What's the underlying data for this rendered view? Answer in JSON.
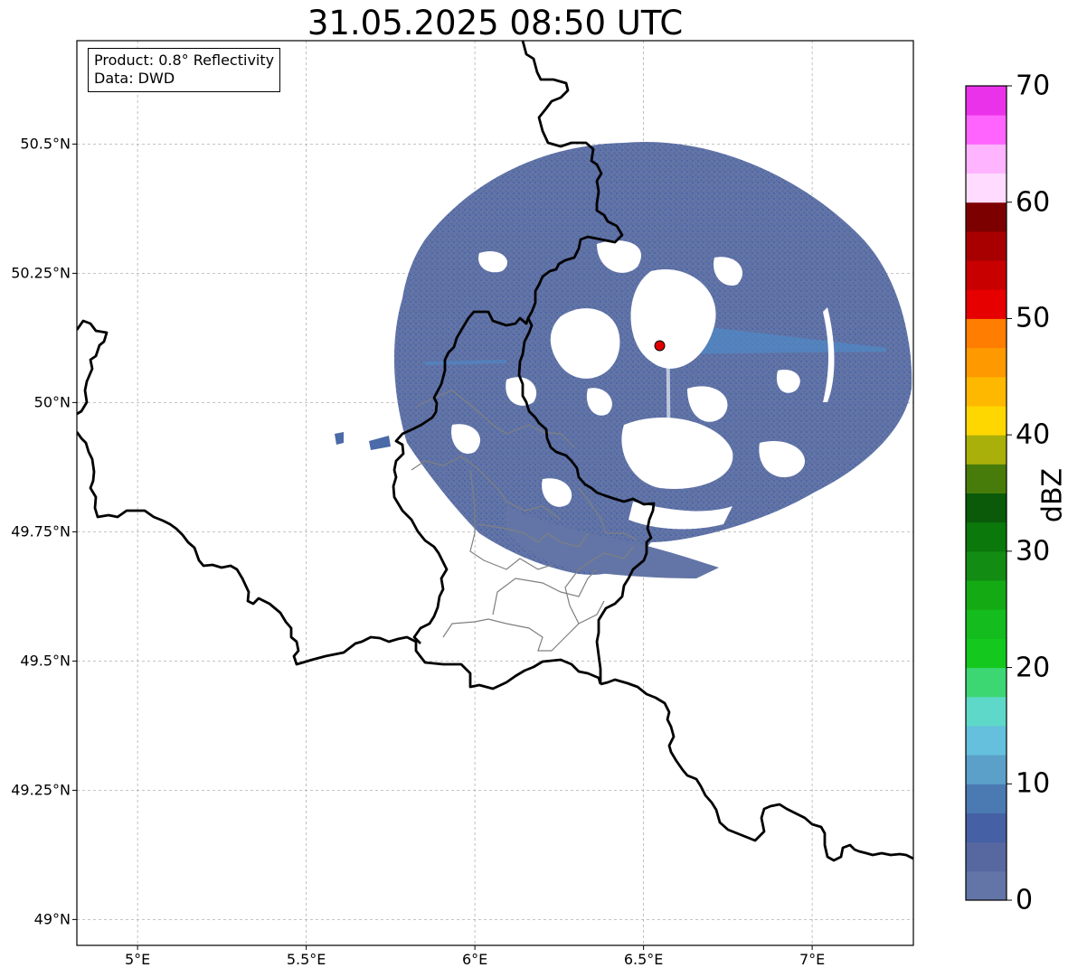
{
  "title": "31.05.2025 08:50 UTC",
  "info_box": {
    "product": "Product: 0.8° Reflectivity",
    "data": "Data: DWD"
  },
  "axes": {
    "lat_labels": [
      "50.5°N",
      "50.25°N",
      "50°N",
      "49.75°N",
      "49.5°N",
      "49.25°N",
      "49°N"
    ],
    "lon_labels": [
      "5°E",
      "5.5°E",
      "6°E",
      "6.5°E",
      "7°E"
    ],
    "lat_values": [
      50.5,
      50.25,
      50.0,
      49.75,
      49.5,
      49.25,
      49.0
    ],
    "lon_values": [
      5.0,
      5.5,
      6.0,
      6.5,
      7.0
    ],
    "extent": {
      "lon_min": 4.82,
      "lon_max": 7.3,
      "lat_min": 48.95,
      "lat_max": 50.7
    }
  },
  "radar_site": {
    "lon": 6.548,
    "lat": 50.11,
    "color": "#e00000"
  },
  "colorbar": {
    "label": "dBZ",
    "ticks": [
      "0",
      "10",
      "20",
      "30",
      "40",
      "50",
      "60",
      "70"
    ],
    "tick_values": [
      0,
      10,
      20,
      30,
      40,
      50,
      60,
      70
    ],
    "min": 0,
    "max": 70,
    "colors": [
      "#6375a6",
      "#5768a0",
      "#4560a5",
      "#4b7ab2",
      "#5aa0c8",
      "#64c0dc",
      "#5ed8c8",
      "#3cd672",
      "#14c81e",
      "#14bc1e",
      "#14aa14",
      "#128c12",
      "#0a780a",
      "#0a5a0a",
      "#487c0a",
      "#aab00a",
      "#ffd700",
      "#ffb800",
      "#ff9900",
      "#ff7d00",
      "#e60000",
      "#c80000",
      "#a80000",
      "#7d0000",
      "#ffdcff",
      "#ffb4ff",
      "#ff64ff",
      "#eb32eb"
    ]
  },
  "echo_color": "#6375a6",
  "echo_accent_color": "#4a90d0",
  "country_border_color": "#000000",
  "region_border_color": "#808080"
}
